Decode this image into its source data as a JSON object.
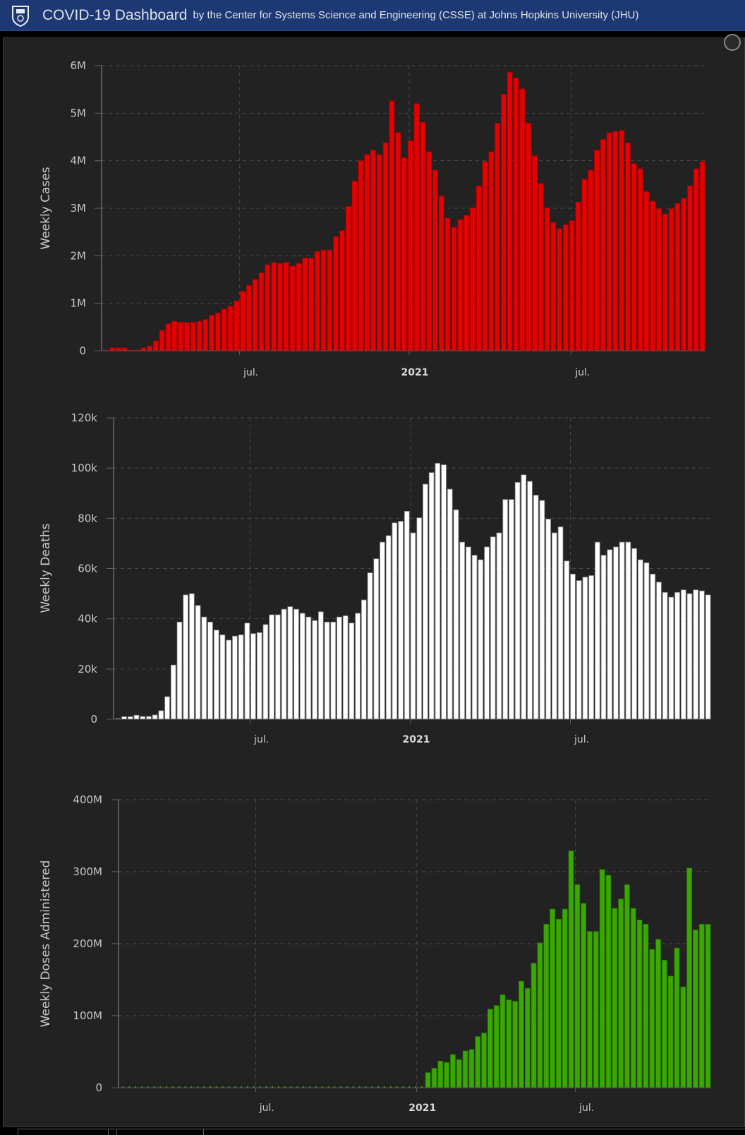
{
  "header": {
    "title": "COVID-19 Dashboard",
    "subtitle": "by the Center for Systems Science and Engineering (CSSE) at Johns Hopkins University (JHU)",
    "logo_icon": "jhu-shield-icon",
    "bg_color": "#1d3872"
  },
  "panel": {
    "corner_icon": "info-circle-icon"
  },
  "chart_data": [
    {
      "type": "bar",
      "title": "",
      "ylabel": "Weekly Cases",
      "xlabel": "",
      "color": "#e60000",
      "ylim": [
        0,
        6000000
      ],
      "yticks": [
        {
          "v": 0,
          "label": "0"
        },
        {
          "v": 1000000,
          "label": "1M"
        },
        {
          "v": 2000000,
          "label": "2M"
        },
        {
          "v": 3000000,
          "label": "3M"
        },
        {
          "v": 4000000,
          "label": "4M"
        },
        {
          "v": 5000000,
          "label": "5M"
        },
        {
          "v": 6000000,
          "label": "6M"
        }
      ],
      "xticks": [
        {
          "at": 21.5,
          "label": "jul.",
          "bold": false
        },
        {
          "at": 48.8,
          "label": "2021",
          "bold": true
        },
        {
          "at": 74.9,
          "label": "jul.",
          "bold": false
        }
      ],
      "grid": true,
      "unit": 1000000,
      "values": [
        0.005,
        0.06,
        0.06,
        0.06,
        0.01,
        0.01,
        0.06,
        0.1,
        0.21,
        0.43,
        0.57,
        0.62,
        0.6,
        0.6,
        0.6,
        0.62,
        0.66,
        0.75,
        0.8,
        0.88,
        0.94,
        1.05,
        1.25,
        1.38,
        1.5,
        1.64,
        1.81,
        1.86,
        1.84,
        1.86,
        1.78,
        1.84,
        1.95,
        1.95,
        2.09,
        2.12,
        2.12,
        2.4,
        2.53,
        3.04,
        3.57,
        4.0,
        4.13,
        4.22,
        4.13,
        4.38,
        5.26,
        4.59,
        4.06,
        4.42,
        5.2,
        4.81,
        4.19,
        3.8,
        3.26,
        2.79,
        2.6,
        2.76,
        2.85,
        3.01,
        3.47,
        3.98,
        4.19,
        4.79,
        5.4,
        5.86,
        5.74,
        5.51,
        4.79,
        4.1,
        3.52,
        3.01,
        2.7,
        2.57,
        2.65,
        2.74,
        3.13,
        3.61,
        3.8,
        4.22,
        4.45,
        4.59,
        4.62,
        4.64,
        4.38,
        3.94,
        3.83,
        3.35,
        3.15,
        2.99,
        2.88,
        2.99,
        3.1,
        3.21,
        3.47,
        3.83,
        3.98
      ]
    },
    {
      "type": "bar",
      "title": "",
      "ylabel": "Weekly Deaths",
      "xlabel": "",
      "color": "#ffffff",
      "ylim": [
        0,
        120000
      ],
      "yticks": [
        {
          "v": 0,
          "label": "0"
        },
        {
          "v": 20000,
          "label": "20k"
        },
        {
          "v": 40000,
          "label": "40k"
        },
        {
          "v": 60000,
          "label": "60k"
        },
        {
          "v": 80000,
          "label": "80k"
        },
        {
          "v": 100000,
          "label": "100k"
        },
        {
          "v": 120000,
          "label": "120k"
        }
      ],
      "xticks": [
        {
          "at": 21.5,
          "label": "jul.",
          "bold": false
        },
        {
          "at": 47.6,
          "label": "2021",
          "bold": true
        },
        {
          "at": 73.6,
          "label": "jul.",
          "bold": false
        }
      ],
      "grid": true,
      "unit": 1000,
      "values": [
        0.2,
        1,
        1,
        1.6,
        1.1,
        1.1,
        1.7,
        3.4,
        9,
        21.6,
        38.7,
        49.5,
        50,
        45.3,
        40.7,
        38.7,
        35.5,
        33.6,
        31.5,
        33.1,
        33.6,
        38.3,
        34.1,
        34.5,
        37.7,
        41.6,
        41.6,
        43.8,
        44.8,
        43.8,
        42.2,
        40.7,
        39.3,
        42.8,
        38.7,
        38.7,
        40.7,
        41.2,
        38.3,
        42.2,
        47.5,
        58.3,
        63.9,
        70.5,
        73.1,
        78.2,
        78.8,
        82.8,
        74.2,
        80.2,
        93.6,
        98.2,
        101.9,
        101.3,
        91.6,
        83.4,
        70.5,
        68.6,
        65.3,
        63.5,
        68.6,
        72.6,
        74.2,
        87.5,
        87.5,
        94.3,
        97.3,
        94.7,
        89.2,
        87.1,
        79.7,
        74.2,
        76.6,
        63,
        57.8,
        55.2,
        56.6,
        57.2,
        70.5,
        65.3,
        67.5,
        68.6,
        70.5,
        70.5,
        68,
        63.5,
        62.3,
        57.8,
        54.6,
        50.5,
        48.6,
        50.5,
        51.5,
        50,
        51.5,
        51.1,
        49.5
      ]
    },
    {
      "type": "bar",
      "title": "",
      "ylabel": "Weekly Doses Administered",
      "xlabel": "",
      "color": "#3aa800",
      "ylim": [
        0,
        400000000
      ],
      "yticks": [
        {
          "v": 0,
          "label": "0"
        },
        {
          "v": 100000000,
          "label": "100M"
        },
        {
          "v": 200000000,
          "label": "200M"
        },
        {
          "v": 300000000,
          "label": "300M"
        },
        {
          "v": 400000000,
          "label": "400M"
        }
      ],
      "xticks": [
        {
          "at": 21.3,
          "label": "jul.",
          "bold": false
        },
        {
          "at": 47.2,
          "label": "2021",
          "bold": true
        },
        {
          "at": 72.7,
          "label": "jul.",
          "bold": false
        }
      ],
      "grid": true,
      "unit": 1000000,
      "values": [
        0,
        0,
        0,
        0,
        0,
        0,
        0,
        0,
        0,
        0,
        0,
        0,
        0,
        0,
        0,
        0,
        0,
        0,
        0,
        0,
        0,
        0,
        0,
        0,
        0,
        0,
        0,
        0,
        0,
        0,
        0,
        0,
        0,
        0,
        0,
        0,
        0,
        0,
        0,
        0,
        0,
        0,
        0,
        0,
        0,
        0,
        0,
        0,
        0,
        21,
        27,
        37,
        35,
        46,
        39,
        51,
        53,
        71,
        76,
        109,
        114,
        129,
        122,
        120,
        148,
        138,
        173,
        201,
        227,
        248,
        234,
        248,
        329,
        282,
        256,
        217,
        217,
        303,
        295,
        249,
        262,
        282,
        249,
        233,
        227,
        192,
        206,
        177,
        155,
        194,
        140,
        305,
        219,
        227,
        227
      ]
    }
  ]
}
